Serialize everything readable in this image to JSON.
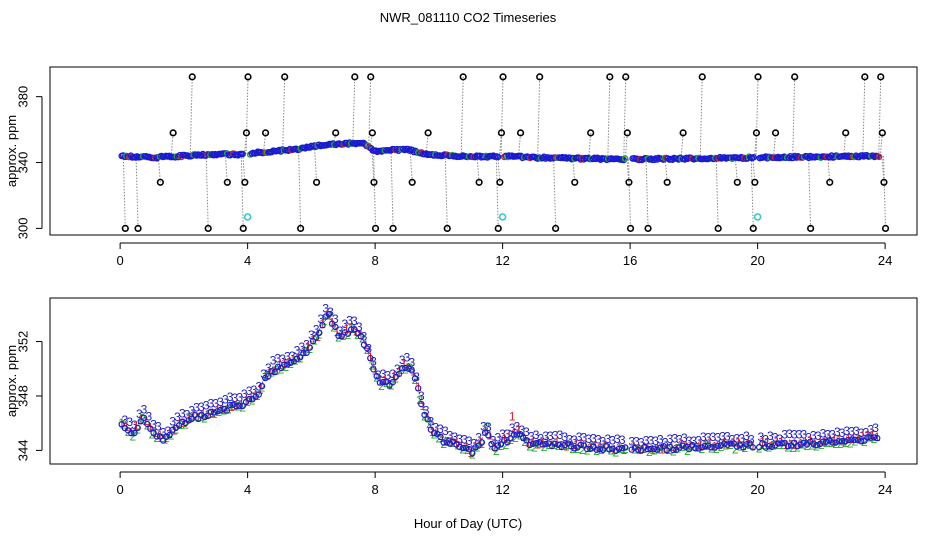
{
  "title": "NWR_081110  CO2 Timeseries",
  "xlabel": "Hour of Day (UTC)",
  "chart_data": [
    {
      "type": "scatter",
      "ylabel": "approx. ppm",
      "xlim": [
        -2.2,
        25
      ],
      "ylim": [
        296,
        398
      ],
      "xticks": [
        0,
        4,
        8,
        12,
        16,
        20,
        24
      ],
      "yticks": [
        300,
        340,
        380
      ],
      "tick_labels_x": [
        "0",
        "4",
        "8",
        "12",
        "16",
        "20",
        "24"
      ],
      "tick_labels_y": [
        "300",
        "340",
        "380"
      ],
      "baseline_knots": [
        [
          0.1,
          344
        ],
        [
          1.0,
          343
        ],
        [
          2.0,
          344
        ],
        [
          3.0,
          345
        ],
        [
          3.9,
          345
        ],
        [
          4.3,
          346
        ],
        [
          5.5,
          348
        ],
        [
          6.5,
          351
        ],
        [
          7.6,
          352
        ],
        [
          8.0,
          347
        ],
        [
          9.0,
          348
        ],
        [
          9.6,
          345
        ],
        [
          10.6,
          344
        ],
        [
          11.9,
          343.5
        ],
        [
          12.1,
          344
        ],
        [
          13.0,
          343
        ],
        [
          15.9,
          342
        ],
        [
          16.1,
          342
        ],
        [
          19.9,
          343
        ],
        [
          20.0,
          343
        ],
        [
          23.8,
          344
        ]
      ],
      "gaps": [
        [
          3.88,
          4.05
        ],
        [
          11.88,
          12.05
        ],
        [
          15.88,
          16.05
        ],
        [
          19.88,
          20.05
        ]
      ],
      "spikes": [
        [
          0.1,
          300
        ],
        [
          0.5,
          300
        ],
        [
          1.2,
          328
        ],
        [
          1.6,
          358
        ],
        [
          2.2,
          392
        ],
        [
          2.7,
          300
        ],
        [
          3.3,
          328
        ],
        [
          3.8,
          300
        ],
        [
          3.85,
          328
        ],
        [
          3.9,
          358
        ],
        [
          3.95,
          392
        ],
        [
          4.5,
          358
        ],
        [
          5.1,
          392
        ],
        [
          5.6,
          300
        ],
        [
          6.1,
          328
        ],
        [
          6.7,
          358
        ],
        [
          7.3,
          392
        ],
        [
          7.8,
          392
        ],
        [
          7.85,
          358
        ],
        [
          7.9,
          328
        ],
        [
          7.95,
          300
        ],
        [
          8.5,
          300
        ],
        [
          9.1,
          328
        ],
        [
          9.6,
          358
        ],
        [
          10.2,
          300
        ],
        [
          10.7,
          392
        ],
        [
          11.2,
          328
        ],
        [
          11.8,
          300
        ],
        [
          11.85,
          328
        ],
        [
          11.9,
          358
        ],
        [
          11.95,
          392
        ],
        [
          12.5,
          358
        ],
        [
          13.1,
          392
        ],
        [
          13.6,
          300
        ],
        [
          14.2,
          328
        ],
        [
          14.7,
          358
        ],
        [
          15.3,
          392
        ],
        [
          15.8,
          392
        ],
        [
          15.85,
          358
        ],
        [
          15.9,
          328
        ],
        [
          15.95,
          300
        ],
        [
          16.5,
          300
        ],
        [
          17.1,
          328
        ],
        [
          17.6,
          358
        ],
        [
          18.2,
          392
        ],
        [
          18.7,
          300
        ],
        [
          19.3,
          328
        ],
        [
          19.8,
          300
        ],
        [
          19.85,
          328
        ],
        [
          19.9,
          358
        ],
        [
          19.95,
          392
        ],
        [
          20.5,
          358
        ],
        [
          21.1,
          392
        ],
        [
          21.6,
          300
        ],
        [
          22.2,
          328
        ],
        [
          22.7,
          358
        ],
        [
          23.3,
          392
        ],
        [
          23.8,
          392
        ],
        [
          23.85,
          358
        ],
        [
          23.9,
          328
        ],
        [
          23.95,
          300
        ]
      ],
      "cyan_points": [
        [
          4.0,
          307
        ],
        [
          12.0,
          307
        ],
        [
          20.0,
          307
        ]
      ]
    },
    {
      "type": "scatter",
      "ylabel": "approx. ppm",
      "xlim": [
        -2.2,
        25
      ],
      "ylim": [
        343,
        355.2
      ],
      "xticks": [
        0,
        4,
        8,
        12,
        16,
        20,
        24
      ],
      "yticks": [
        344,
        348,
        352
      ],
      "tick_labels_x": [
        "0",
        "4",
        "8",
        "12",
        "16",
        "20",
        "24"
      ],
      "tick_labels_y": [
        "344",
        "348",
        "352"
      ],
      "series_labels": [
        "1",
        "2",
        "3"
      ],
      "knots": [
        [
          0.1,
          346
        ],
        [
          0.4,
          345.3
        ],
        [
          0.7,
          346.6
        ],
        [
          1.0,
          345.5
        ],
        [
          1.4,
          344.9
        ],
        [
          1.8,
          345.9
        ],
        [
          2.2,
          346.5
        ],
        [
          2.7,
          346.8
        ],
        [
          3.2,
          347.1
        ],
        [
          3.6,
          347.5
        ],
        [
          3.9,
          347.6
        ],
        [
          4.3,
          348.1
        ],
        [
          4.6,
          349.7
        ],
        [
          5.0,
          350.3
        ],
        [
          5.4,
          350.5
        ],
        [
          5.8,
          351.3
        ],
        [
          6.2,
          352.5
        ],
        [
          6.5,
          354.2
        ],
        [
          6.9,
          352.5
        ],
        [
          7.3,
          353.1
        ],
        [
          7.6,
          352.3
        ],
        [
          7.8,
          351.2
        ],
        [
          8.1,
          349.2
        ],
        [
          8.5,
          349.0
        ],
        [
          8.9,
          350.4
        ],
        [
          9.2,
          350.0
        ],
        [
          9.5,
          347.2
        ],
        [
          9.8,
          345.5
        ],
        [
          10.2,
          344.8
        ],
        [
          10.6,
          344.6
        ],
        [
          11.0,
          344.0
        ],
        [
          11.3,
          344.6
        ],
        [
          11.5,
          345.8
        ],
        [
          11.7,
          344.2
        ],
        [
          12.1,
          344.8
        ],
        [
          12.5,
          345.4
        ],
        [
          12.8,
          344.6
        ],
        [
          13.5,
          344.6
        ],
        [
          14.5,
          344.4
        ],
        [
          15.5,
          344.3
        ],
        [
          15.9,
          344.2
        ],
        [
          16.1,
          344.2
        ],
        [
          17.0,
          344.3
        ],
        [
          18.0,
          344.4
        ],
        [
          19.0,
          344.5
        ],
        [
          19.9,
          344.5
        ],
        [
          20.1,
          344.5
        ],
        [
          21.0,
          344.6
        ],
        [
          22.0,
          344.7
        ],
        [
          23.0,
          344.9
        ],
        [
          23.8,
          345.1
        ]
      ],
      "gaps": [
        [
          15.88,
          16.05
        ],
        [
          19.88,
          20.05
        ]
      ],
      "red_labels": [
        [
          12.3,
          346.2
        ]
      ]
    }
  ]
}
